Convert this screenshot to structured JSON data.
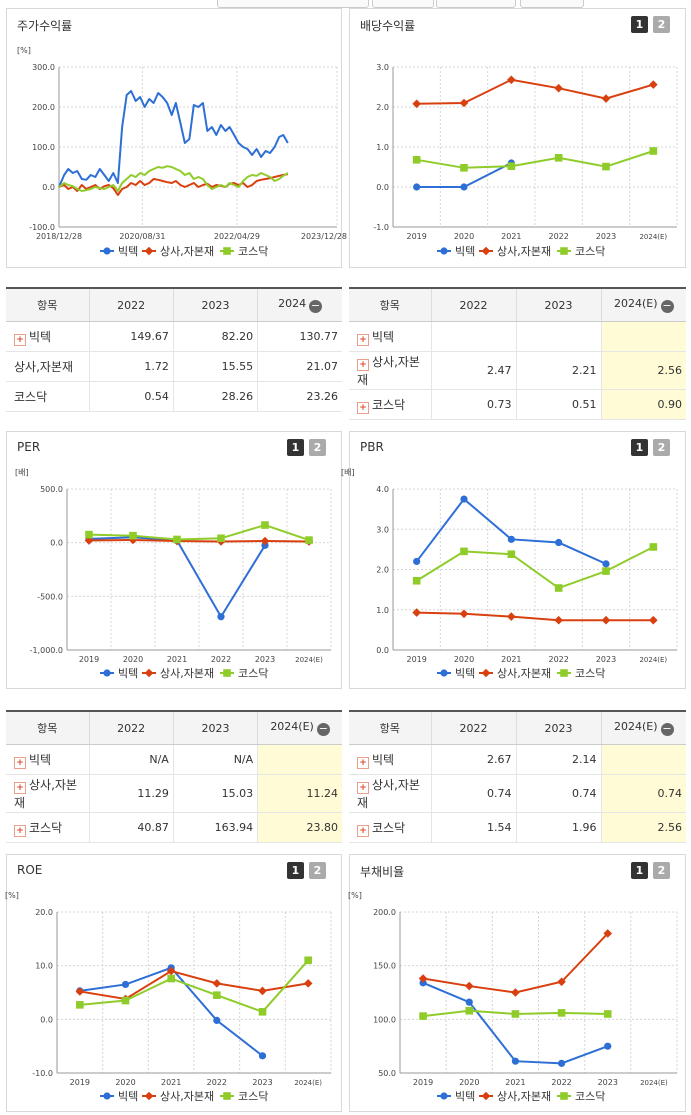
{
  "colors": {
    "bictech": "#2e6fd6",
    "sangsa": "#d94010",
    "kosdaq": "#8fcc2a",
    "grid": "#d6d6d6",
    "est_bg": "#fffbd6"
  },
  "legend": [
    "빅텍",
    "상사,자본재",
    "코스닥"
  ],
  "switch": {
    "one": "1",
    "two": "2"
  },
  "stock": {
    "title": "주가수익률",
    "chart_data": {
      "type": "line",
      "unit": "[%]",
      "ylim": [
        -100,
        300
      ],
      "yticks": [
        "300.0",
        "200.0",
        "100.0",
        "0.0",
        "-100.0"
      ],
      "xticks": [
        "2018/12/28",
        "2020/08/31",
        "2022/04/29",
        "2023/12/28"
      ],
      "x_range": [
        "2018-12-28",
        "2024-02-29"
      ],
      "series": [
        {
          "name": "빅텍",
          "points": [
            [
              "2018-12-28",
              0
            ],
            [
              "2019-02-01",
              30
            ],
            [
              "2019-03-01",
              45
            ],
            [
              "2019-04-01",
              35
            ],
            [
              "2019-05-01",
              40
            ],
            [
              "2019-06-01",
              20
            ],
            [
              "2019-07-01",
              18
            ],
            [
              "2019-08-01",
              30
            ],
            [
              "2019-09-01",
              25
            ],
            [
              "2019-10-01",
              45
            ],
            [
              "2019-11-01",
              30
            ],
            [
              "2019-12-01",
              15
            ],
            [
              "2020-01-01",
              35
            ],
            [
              "2020-02-01",
              10
            ],
            [
              "2020-03-01",
              150
            ],
            [
              "2020-04-01",
              230
            ],
            [
              "2020-05-01",
              240
            ],
            [
              "2020-06-01",
              215
            ],
            [
              "2020-07-01",
              225
            ],
            [
              "2020-08-01",
              200
            ],
            [
              "2020-09-01",
              220
            ],
            [
              "2020-10-01",
              210
            ],
            [
              "2020-11-01",
              235
            ],
            [
              "2020-12-01",
              225
            ],
            [
              "2021-01-01",
              210
            ],
            [
              "2021-02-01",
              180
            ],
            [
              "2021-03-01",
              210
            ],
            [
              "2021-04-01",
              160
            ],
            [
              "2021-05-01",
              110
            ],
            [
              "2021-06-01",
              120
            ],
            [
              "2021-07-01",
              205
            ],
            [
              "2021-08-01",
              200
            ],
            [
              "2021-09-01",
              210
            ],
            [
              "2021-10-01",
              140
            ],
            [
              "2021-11-01",
              150
            ],
            [
              "2021-12-01",
              130
            ],
            [
              "2022-01-01",
              155
            ],
            [
              "2022-02-01",
              140
            ],
            [
              "2022-03-01",
              150
            ],
            [
              "2022-04-01",
              130
            ],
            [
              "2022-05-01",
              110
            ],
            [
              "2022-06-01",
              100
            ],
            [
              "2022-07-01",
              95
            ],
            [
              "2022-08-01",
              80
            ],
            [
              "2022-09-01",
              95
            ],
            [
              "2022-10-01",
              75
            ],
            [
              "2022-11-01",
              90
            ],
            [
              "2022-12-01",
              85
            ],
            [
              "2023-01-01",
              100
            ],
            [
              "2023-02-01",
              125
            ],
            [
              "2023-03-01",
              130
            ],
            [
              "2023-04-01",
              110
            ]
          ]
        },
        {
          "name": "상사,자본재",
          "points": [
            [
              "2018-12-28",
              0
            ],
            [
              "2019-02-01",
              5
            ],
            [
              "2019-03-01",
              -5
            ],
            [
              "2019-04-01",
              0
            ],
            [
              "2019-05-01",
              -10
            ],
            [
              "2019-06-01",
              5
            ],
            [
              "2019-07-01",
              -5
            ],
            [
              "2019-08-01",
              0
            ],
            [
              "2019-09-01",
              5
            ],
            [
              "2019-10-01",
              -5
            ],
            [
              "2019-11-01",
              2
            ],
            [
              "2019-12-01",
              5
            ],
            [
              "2020-01-01",
              -3
            ],
            [
              "2020-02-01",
              -20
            ],
            [
              "2020-03-01",
              -5
            ],
            [
              "2020-04-01",
              0
            ],
            [
              "2020-05-01",
              10
            ],
            [
              "2020-06-01",
              5
            ],
            [
              "2020-07-01",
              15
            ],
            [
              "2020-08-01",
              5
            ],
            [
              "2020-09-01",
              10
            ],
            [
              "2020-10-01",
              20
            ],
            [
              "2020-11-01",
              18
            ],
            [
              "2020-12-01",
              15
            ],
            [
              "2021-01-01",
              12
            ],
            [
              "2021-02-01",
              10
            ],
            [
              "2021-03-01",
              15
            ],
            [
              "2021-04-01",
              5
            ],
            [
              "2021-05-01",
              0
            ],
            [
              "2021-06-01",
              5
            ],
            [
              "2021-07-01",
              10
            ],
            [
              "2021-08-01",
              0
            ],
            [
              "2021-09-01",
              5
            ],
            [
              "2021-10-01",
              8
            ],
            [
              "2021-11-01",
              0
            ],
            [
              "2021-12-01",
              5
            ],
            [
              "2022-01-01",
              3
            ],
            [
              "2022-02-01",
              0
            ],
            [
              "2022-03-01",
              8
            ],
            [
              "2022-04-01",
              10
            ],
            [
              "2022-05-01",
              5
            ],
            [
              "2022-06-01",
              10
            ],
            [
              "2022-07-01",
              0
            ],
            [
              "2022-08-01",
              5
            ],
            [
              "2022-09-01",
              15
            ],
            [
              "2022-10-01",
              18
            ],
            [
              "2022-11-01",
              20
            ],
            [
              "2022-12-01",
              22
            ],
            [
              "2023-01-01",
              25
            ],
            [
              "2023-02-01",
              28
            ],
            [
              "2023-03-01",
              30
            ],
            [
              "2023-04-01",
              32
            ]
          ]
        },
        {
          "name": "코스닥",
          "points": [
            [
              "2018-12-28",
              0
            ],
            [
              "2019-02-01",
              10
            ],
            [
              "2019-03-01",
              5
            ],
            [
              "2019-04-01",
              2
            ],
            [
              "2019-05-01",
              -5
            ],
            [
              "2019-06-01",
              -10
            ],
            [
              "2019-07-01",
              -8
            ],
            [
              "2019-08-01",
              -5
            ],
            [
              "2019-09-01",
              0
            ],
            [
              "2019-10-01",
              -3
            ],
            [
              "2019-11-01",
              -5
            ],
            [
              "2019-12-01",
              0
            ],
            [
              "2020-01-01",
              5
            ],
            [
              "2020-02-01",
              -10
            ],
            [
              "2020-03-01",
              10
            ],
            [
              "2020-04-01",
              20
            ],
            [
              "2020-05-01",
              30
            ],
            [
              "2020-06-01",
              25
            ],
            [
              "2020-07-01",
              35
            ],
            [
              "2020-08-01",
              30
            ],
            [
              "2020-09-01",
              40
            ],
            [
              "2020-10-01",
              45
            ],
            [
              "2020-11-01",
              50
            ],
            [
              "2020-12-01",
              48
            ],
            [
              "2021-01-01",
              52
            ],
            [
              "2021-02-01",
              50
            ],
            [
              "2021-03-01",
              45
            ],
            [
              "2021-04-01",
              40
            ],
            [
              "2021-05-01",
              30
            ],
            [
              "2021-06-01",
              35
            ],
            [
              "2021-07-01",
              20
            ],
            [
              "2021-08-01",
              25
            ],
            [
              "2021-09-01",
              20
            ],
            [
              "2021-10-01",
              5
            ],
            [
              "2021-11-01",
              -5
            ],
            [
              "2021-12-01",
              0
            ],
            [
              "2022-01-01",
              5
            ],
            [
              "2022-02-01",
              0
            ],
            [
              "2022-03-01",
              10
            ],
            [
              "2022-04-01",
              5
            ],
            [
              "2022-05-01",
              0
            ],
            [
              "2022-06-01",
              15
            ],
            [
              "2022-07-01",
              25
            ],
            [
              "2022-08-01",
              30
            ],
            [
              "2022-09-01",
              28
            ],
            [
              "2022-10-01",
              35
            ],
            [
              "2022-11-01",
              30
            ],
            [
              "2022-12-01",
              25
            ],
            [
              "2023-01-01",
              15
            ],
            [
              "2023-02-01",
              20
            ],
            [
              "2023-03-01",
              28
            ],
            [
              "2023-04-01",
              35
            ]
          ]
        }
      ]
    },
    "table": {
      "header": [
        "항목",
        "2022",
        "2023",
        "2024"
      ],
      "rows": [
        {
          "name": "빅텍",
          "v": [
            "149.67",
            "82.20",
            "130.77"
          ]
        },
        {
          "name": "상사,자본재",
          "v": [
            "1.72",
            "15.55",
            "21.07"
          ]
        },
        {
          "name": "코스닥",
          "v": [
            "0.54",
            "28.26",
            "23.26"
          ]
        }
      ]
    }
  },
  "dividend": {
    "title": "배당수익률",
    "chart_data": {
      "type": "line",
      "unit": "",
      "ylim": [
        -1,
        3
      ],
      "yticks": [
        "3.0",
        "2.0",
        "1.0",
        "0.0",
        "-1.0"
      ],
      "categories": [
        "2019",
        "2020",
        "2021",
        "2022",
        "2023",
        "2024(E)"
      ],
      "series": [
        {
          "name": "빅텍",
          "values": [
            0,
            0,
            0.6,
            null,
            null,
            null
          ]
        },
        {
          "name": "상사,자본재",
          "values": [
            2.08,
            2.1,
            2.68,
            2.47,
            2.21,
            2.56
          ]
        },
        {
          "name": "코스닥",
          "values": [
            0.68,
            0.48,
            0.52,
            0.73,
            0.51,
            0.9
          ]
        }
      ]
    },
    "table": {
      "header": [
        "항목",
        "2022",
        "2023",
        "2024(E)"
      ],
      "rows": [
        {
          "name": "빅텍",
          "v": [
            "",
            "",
            ""
          ]
        },
        {
          "name": "상사,자본재",
          "v": [
            "2.47",
            "2.21",
            "2.56"
          ]
        },
        {
          "name": "코스닥",
          "v": [
            "0.73",
            "0.51",
            "0.90"
          ]
        }
      ]
    }
  },
  "per": {
    "title": "PER",
    "chart_data": {
      "type": "line",
      "unit": "[배]",
      "ylim": [
        -1000,
        500
      ],
      "yticks": [
        "500.0",
        "0.0",
        "-500.0",
        "-1,000.0"
      ],
      "categories": [
        "2019",
        "2020",
        "2021",
        "2022",
        "2023",
        "2024(E)"
      ],
      "series": [
        {
          "name": "빅텍",
          "values": [
            35,
            50,
            20,
            -690,
            -25,
            null
          ]
        },
        {
          "name": "상사,자본재",
          "values": [
            20,
            25,
            15,
            11.29,
            15.03,
            11.24
          ]
        },
        {
          "name": "코스닥",
          "values": [
            75,
            65,
            30,
            40.87,
            163.94,
            23.8
          ]
        }
      ]
    },
    "table": {
      "header": [
        "항목",
        "2022",
        "2023",
        "2024(E)"
      ],
      "rows": [
        {
          "name": "빅텍",
          "v": [
            "N/A",
            "N/A",
            ""
          ]
        },
        {
          "name": "상사,자본재",
          "v": [
            "11.29",
            "15.03",
            "11.24"
          ]
        },
        {
          "name": "코스닥",
          "v": [
            "40.87",
            "163.94",
            "23.80"
          ]
        }
      ]
    }
  },
  "pbr": {
    "title": "PBR",
    "chart_data": {
      "type": "line",
      "unit": "[배]",
      "ylim": [
        0,
        4
      ],
      "yticks": [
        "4.0",
        "3.0",
        "2.0",
        "1.0",
        "0.0"
      ],
      "categories": [
        "2019",
        "2020",
        "2021",
        "2022",
        "2023",
        "2024(E)"
      ],
      "series": [
        {
          "name": "빅텍",
          "values": [
            2.2,
            3.75,
            2.75,
            2.67,
            2.14,
            null
          ]
        },
        {
          "name": "상사,자본재",
          "values": [
            0.93,
            0.9,
            0.83,
            0.74,
            0.74,
            0.74
          ]
        },
        {
          "name": "코스닥",
          "values": [
            1.72,
            2.45,
            2.38,
            1.54,
            1.96,
            2.56
          ]
        }
      ]
    },
    "table": {
      "header": [
        "항목",
        "2022",
        "2023",
        "2024(E)"
      ],
      "rows": [
        {
          "name": "빅텍",
          "v": [
            "2.67",
            "2.14",
            ""
          ]
        },
        {
          "name": "상사,자본재",
          "v": [
            "0.74",
            "0.74",
            "0.74"
          ]
        },
        {
          "name": "코스닥",
          "v": [
            "1.54",
            "1.96",
            "2.56"
          ]
        }
      ]
    }
  },
  "roe": {
    "title": "ROE",
    "chart_data": {
      "type": "line",
      "unit": "[%]",
      "ylim": [
        -10,
        20
      ],
      "yticks": [
        "20.0",
        "10.0",
        "0.0",
        "-10.0"
      ],
      "categories": [
        "2019",
        "2020",
        "2021",
        "2022",
        "2023",
        "2024(E)"
      ],
      "series": [
        {
          "name": "빅텍",
          "values": [
            5.3,
            6.5,
            9.6,
            -0.2,
            -6.8,
            null
          ]
        },
        {
          "name": "상사,자본재",
          "values": [
            5.2,
            3.8,
            9.0,
            6.7,
            5.3,
            6.7
          ]
        },
        {
          "name": "코스닥",
          "values": [
            2.7,
            3.5,
            7.6,
            4.5,
            1.4,
            11.0
          ]
        }
      ]
    }
  },
  "debt": {
    "title": "부채비율",
    "chart_data": {
      "type": "line",
      "unit": "[%]",
      "ylim": [
        50,
        200
      ],
      "yticks": [
        "200.0",
        "150.0",
        "100.0",
        "50.0"
      ],
      "categories": [
        "2019",
        "2020",
        "2021",
        "2022",
        "2023",
        "2024(E)"
      ],
      "series": [
        {
          "name": "빅텍",
          "values": [
            134,
            116,
            61,
            59,
            75,
            null
          ]
        },
        {
          "name": "상사,자본재",
          "values": [
            138,
            131,
            125,
            135,
            180,
            null
          ]
        },
        {
          "name": "코스닥",
          "values": [
            103,
            108,
            105,
            106,
            105,
            null
          ]
        }
      ]
    }
  }
}
